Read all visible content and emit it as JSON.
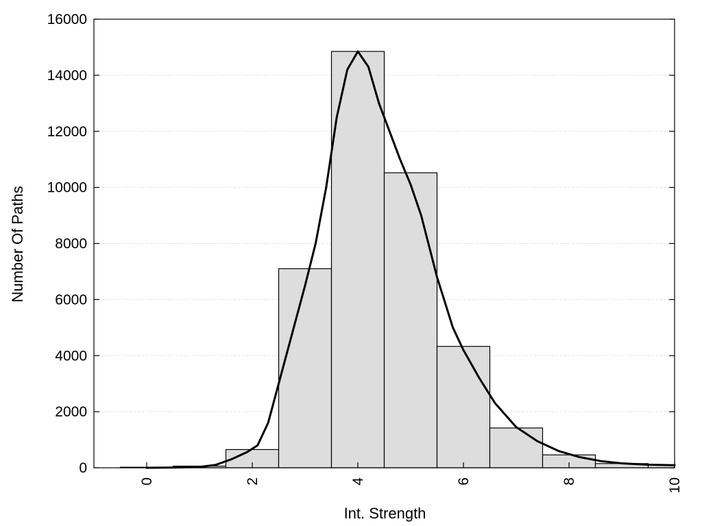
{
  "chart_data": {
    "type": "bar",
    "xlabel": "Int. Strength",
    "ylabel": "Number Of Paths",
    "xlim": [
      -1,
      10
    ],
    "ylim": [
      0,
      16000
    ],
    "grid": true,
    "x_ticks": [
      0,
      2,
      4,
      6,
      8,
      10
    ],
    "y_ticks": [
      0,
      2000,
      4000,
      6000,
      8000,
      10000,
      12000,
      14000,
      16000
    ],
    "bars": [
      {
        "x": 0,
        "value": 20
      },
      {
        "x": 1,
        "value": 60
      },
      {
        "x": 2,
        "value": 650
      },
      {
        "x": 3,
        "value": 7100
      },
      {
        "x": 4,
        "value": 14850
      },
      {
        "x": 5,
        "value": 10520
      },
      {
        "x": 6,
        "value": 4330
      },
      {
        "x": 7,
        "value": 1420
      },
      {
        "x": 8,
        "value": 460
      },
      {
        "x": 9,
        "value": 150
      },
      {
        "x": 10,
        "value": 90
      }
    ],
    "fit_curve": {
      "type": "line",
      "points": [
        [
          0,
          0
        ],
        [
          0.5,
          10
        ],
        [
          1,
          30
        ],
        [
          1.3,
          100
        ],
        [
          1.6,
          300
        ],
        [
          1.9,
          560
        ],
        [
          2.1,
          800
        ],
        [
          2.3,
          1600
        ],
        [
          2.5,
          3000
        ],
        [
          2.8,
          5100
        ],
        [
          3.0,
          6500
        ],
        [
          3.2,
          8000
        ],
        [
          3.4,
          10000
        ],
        [
          3.6,
          12500
        ],
        [
          3.8,
          14200
        ],
        [
          4.0,
          14850
        ],
        [
          4.2,
          14300
        ],
        [
          4.4,
          13000
        ],
        [
          4.6,
          12000
        ],
        [
          4.8,
          11000
        ],
        [
          5.0,
          10100
        ],
        [
          5.2,
          9000
        ],
        [
          5.5,
          6800
        ],
        [
          5.8,
          5000
        ],
        [
          6.0,
          4200
        ],
        [
          6.3,
          3200
        ],
        [
          6.6,
          2300
        ],
        [
          7.0,
          1450
        ],
        [
          7.4,
          950
        ],
        [
          7.8,
          600
        ],
        [
          8.2,
          380
        ],
        [
          8.6,
          240
        ],
        [
          9.0,
          160
        ],
        [
          9.5,
          110
        ],
        [
          10,
          90
        ]
      ]
    }
  }
}
